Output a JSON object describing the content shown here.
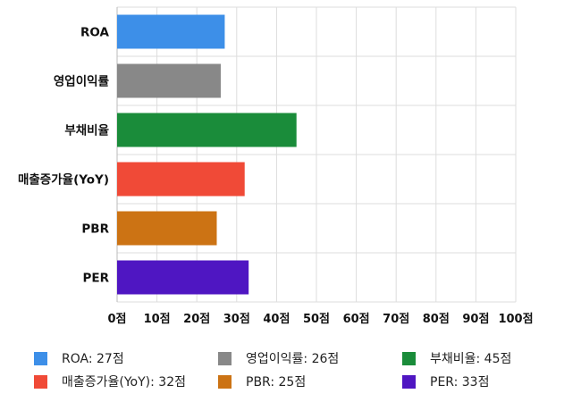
{
  "chart_data": {
    "type": "bar",
    "orientation": "horizontal",
    "categories": [
      "ROA",
      "영업이익률",
      "부채비율",
      "매출증가율(YoY)",
      "PBR",
      "PER"
    ],
    "values": [
      27,
      26,
      45,
      32,
      25,
      33
    ],
    "colors": [
      "#3d8fe8",
      "#888888",
      "#1a8c3a",
      "#f04a37",
      "#cc7314",
      "#4f16c2"
    ],
    "xlim": [
      0,
      100
    ],
    "x_ticks": [
      "0점",
      "10점",
      "20점",
      "30점",
      "40점",
      "50점",
      "60점",
      "70점",
      "80점",
      "90점",
      "100점"
    ],
    "grid": true,
    "legend_position": "bottom",
    "legend": [
      {
        "label": "ROA: 27점",
        "color": "#3d8fe8"
      },
      {
        "label": "영업이익률: 26점",
        "color": "#888888"
      },
      {
        "label": "부채비율: 45점",
        "color": "#1a8c3a"
      },
      {
        "label": "매출증가율(YoY): 32점",
        "color": "#f04a37"
      },
      {
        "label": "PBR: 25점",
        "color": "#cc7314"
      },
      {
        "label": "PER: 33점",
        "color": "#4f16c2"
      }
    ]
  }
}
